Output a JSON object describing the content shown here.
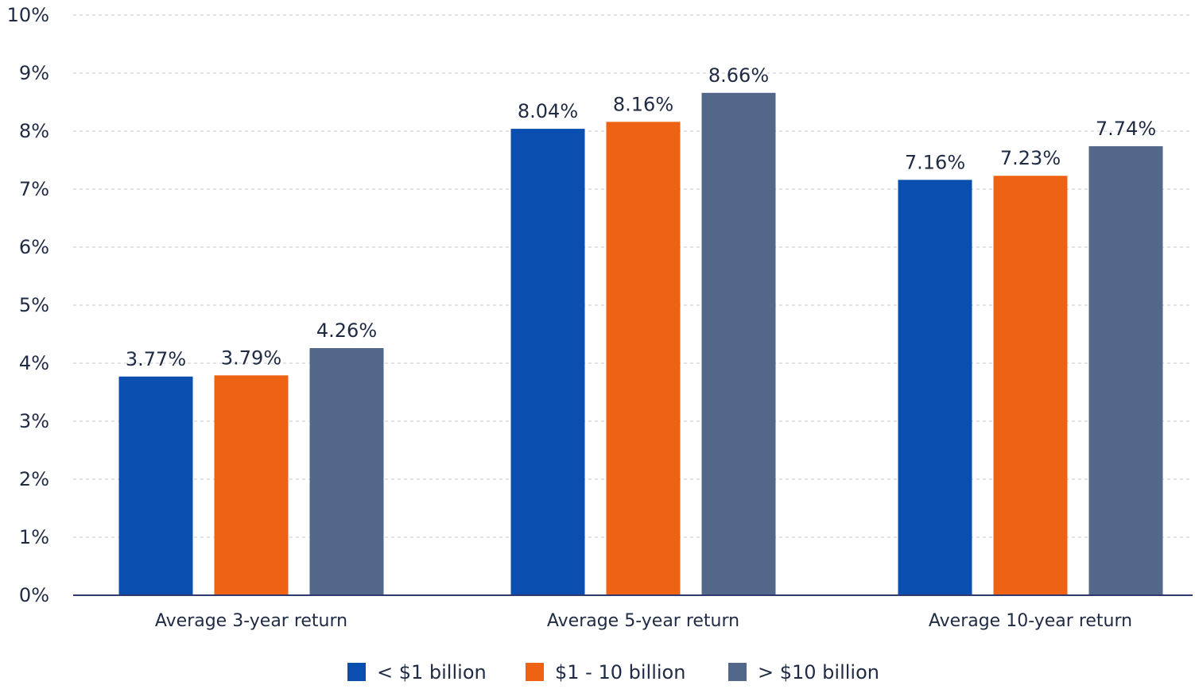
{
  "chart_data": {
    "type": "bar",
    "title": "",
    "xlabel": "",
    "ylabel": "",
    "ylim": [
      0,
      10
    ],
    "yticks": [
      "0%",
      "1%",
      "2%",
      "3%",
      "4%",
      "5%",
      "6%",
      "7%",
      "8%",
      "9%",
      "10%"
    ],
    "grid": true,
    "legend_position": "bottom",
    "categories": [
      "Average 3-year return",
      "Average 5-year return",
      "Average 10-year return"
    ],
    "series": [
      {
        "name": "< $1 billion",
        "color": "#0A4FAF",
        "values": [
          3.77,
          8.04,
          7.16
        ],
        "labels": [
          "3.77%",
          "8.04%",
          "7.16%"
        ]
      },
      {
        "name": "$1 - 10 billion",
        "color": "#EE6214",
        "values": [
          3.79,
          8.16,
          7.23
        ],
        "labels": [
          "3.79%",
          "8.16%",
          "7.23%"
        ]
      },
      {
        "name": "> $10 billion",
        "color": "#52678A",
        "values": [
          4.26,
          8.66,
          7.74
        ],
        "labels": [
          "4.26%",
          "8.66%",
          "7.74%"
        ]
      }
    ],
    "axis_color": "#2E3A6E",
    "grid_color": "#D5D5D5"
  }
}
